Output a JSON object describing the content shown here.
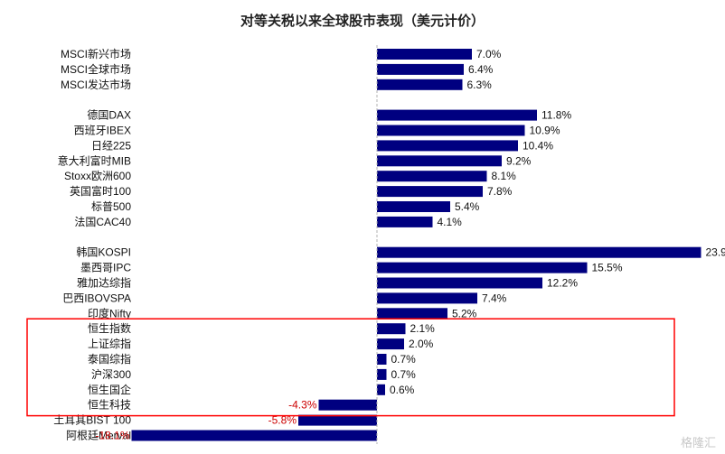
{
  "chart_data": {
    "type": "bar",
    "orientation": "horizontal",
    "title": "对等关税以来全球股市表现（美元计价）",
    "unit": "%",
    "xlim": [
      -20,
      26
    ],
    "bar_color": "#000080",
    "positive_label_color": "#111111",
    "negative_label_color": "#cc0000",
    "highlight_box_color": "#ff0000",
    "groups": [
      {
        "categories": [
          "MSCI新兴市场",
          "MSCI全球市场",
          "MSCI发达市场"
        ],
        "values": [
          7.0,
          6.4,
          6.3
        ]
      },
      {
        "categories": [
          "德国DAX",
          "西班牙IBEX",
          "日经225",
          "意大利富时MIB",
          "Stoxx欧洲600",
          "英国富时100",
          "标普500",
          "法国CAC40"
        ],
        "values": [
          11.8,
          10.9,
          10.4,
          9.2,
          8.1,
          7.8,
          5.4,
          4.1
        ]
      },
      {
        "categories": [
          "韩国KOSPI",
          "墨西哥IPC",
          "雅加达综指",
          "巴西IBOVSPA",
          "印度Nifty",
          "恒生指数",
          "上证综指",
          "泰国综指",
          "沪深300",
          "恒生国企",
          "恒生科技",
          "土耳其BIST 100",
          "阿根廷Merval"
        ],
        "values": [
          23.9,
          15.5,
          12.2,
          7.4,
          5.2,
          2.1,
          2.0,
          0.7,
          0.7,
          0.6,
          -4.3,
          -5.8,
          -18.1
        ]
      }
    ],
    "highlighted": [
      "恒生指数",
      "上证综指",
      "泰国综指",
      "沪深300",
      "恒生国企",
      "恒生科技"
    ]
  },
  "watermark": "格隆汇"
}
